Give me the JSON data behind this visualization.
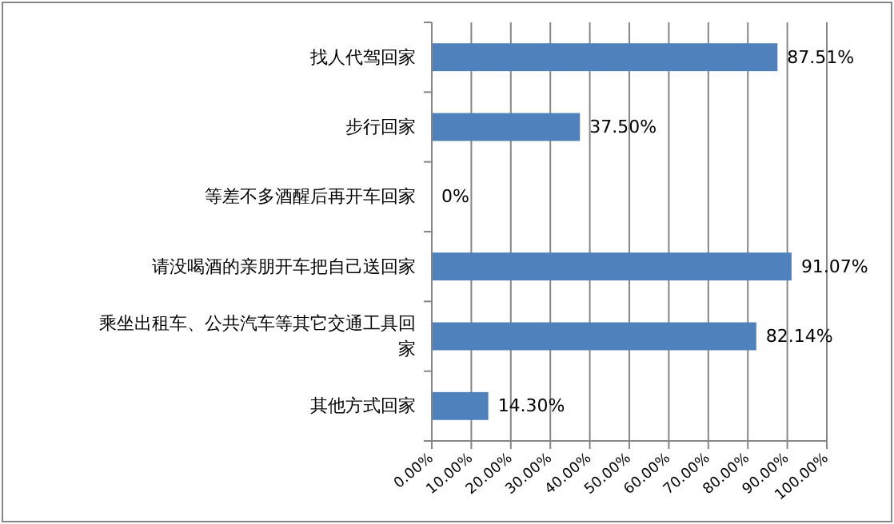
{
  "chart_data": {
    "type": "bar",
    "orientation": "horizontal",
    "categories": [
      "找人代驾回家",
      "步行回家",
      "等差不多酒醒后再开车回家",
      "请没喝酒的亲朋开车把自己送回家",
      "乘坐出租车、公共汽车等其它交通工具回家",
      "其他方式回家"
    ],
    "values": [
      87.51,
      37.5,
      0,
      91.07,
      82.14,
      14.3
    ],
    "value_labels": [
      "87.51%",
      "37.50%",
      "0%",
      "91.07%",
      "82.14%",
      "14.30%"
    ],
    "color": "#4f81bd",
    "xlim": [
      0,
      100
    ],
    "xticks": [
      {
        "value": 0,
        "label": "0.00%"
      },
      {
        "value": 10,
        "label": "10.00%"
      },
      {
        "value": 20,
        "label": "20.00%"
      },
      {
        "value": 30,
        "label": "30.00%"
      },
      {
        "value": 40,
        "label": "40.00%"
      },
      {
        "value": 50,
        "label": "50.00%"
      },
      {
        "value": 60,
        "label": "60.00%"
      },
      {
        "value": 70,
        "label": "70.00%"
      },
      {
        "value": 80,
        "label": "80.00%"
      },
      {
        "value": 90,
        "label": "90.00%"
      },
      {
        "value": 100,
        "label": "100.00%"
      }
    ],
    "grid": "x"
  }
}
